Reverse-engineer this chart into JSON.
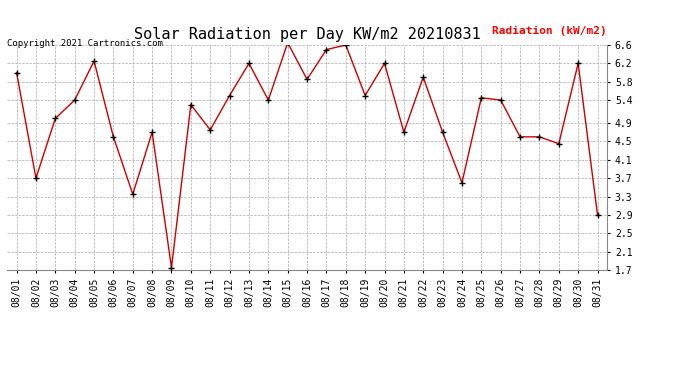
{
  "title": "Solar Radiation per Day KW/m2 20210831",
  "copyright_text": "Copyright 2021 Cartronics.com",
  "legend_label": "Radiation (kW/m2)",
  "dates": [
    "08/01",
    "08/02",
    "08/03",
    "08/04",
    "08/05",
    "08/06",
    "08/07",
    "08/08",
    "08/09",
    "08/10",
    "08/11",
    "08/12",
    "08/13",
    "08/14",
    "08/15",
    "08/16",
    "08/17",
    "08/18",
    "08/19",
    "08/20",
    "08/21",
    "08/22",
    "08/23",
    "08/24",
    "08/25",
    "08/26",
    "08/27",
    "08/28",
    "08/29",
    "08/30",
    "08/31"
  ],
  "values": [
    6.0,
    3.7,
    5.0,
    5.4,
    6.25,
    4.6,
    3.35,
    4.7,
    1.75,
    5.3,
    4.75,
    5.5,
    6.2,
    5.4,
    6.65,
    5.85,
    6.5,
    6.6,
    5.5,
    6.2,
    4.7,
    5.9,
    4.7,
    3.6,
    5.45,
    5.4,
    4.6,
    4.6,
    4.45,
    6.2,
    2.9
  ],
  "line_color": "#cc0000",
  "marker_color": "#000000",
  "grid_color": "#aaaaaa",
  "bg_color": "#ffffff",
  "title_fontsize": 11,
  "copyright_fontsize": 6.5,
  "legend_fontsize": 8,
  "tick_fontsize": 7,
  "ylim": [
    1.7,
    6.6
  ],
  "yticks": [
    1.7,
    2.1,
    2.5,
    2.9,
    3.3,
    3.7,
    4.1,
    4.5,
    4.9,
    5.4,
    5.8,
    6.2,
    6.6
  ]
}
